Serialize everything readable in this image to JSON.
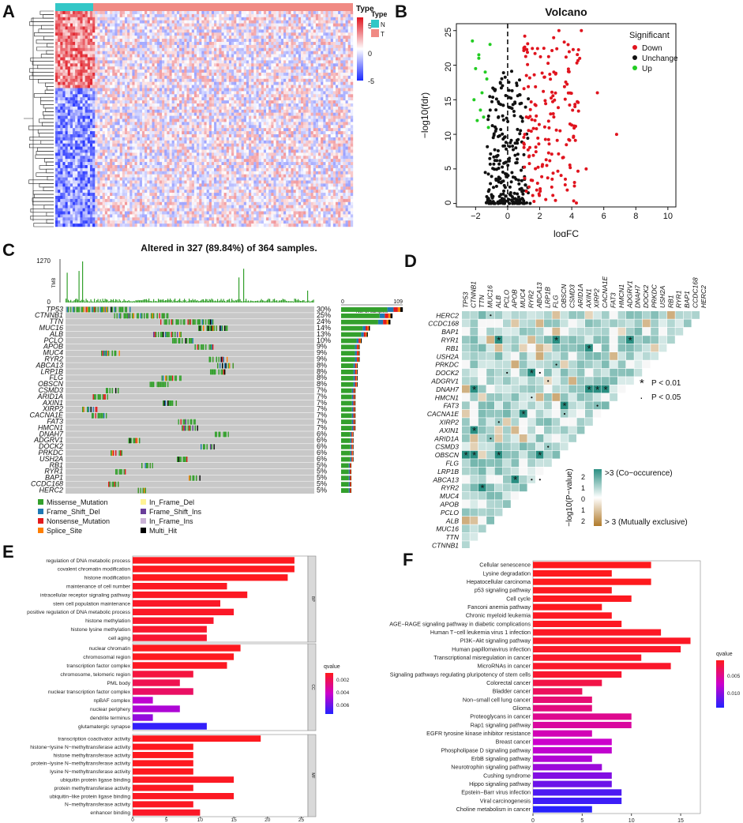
{
  "panels": {
    "a": "A",
    "b": "B",
    "c": "C",
    "d": "D",
    "e": "E",
    "f": "F"
  },
  "heatmap": {
    "legend_title": "Type",
    "type_legend": [
      {
        "label": "N",
        "color": "#33c7c7"
      },
      {
        "label": "T",
        "color": "#f08a84"
      }
    ],
    "color_ticks": [
      "5",
      "0",
      "-5"
    ],
    "colors": {
      "high": "#e0141e",
      "mid": "#ffffff",
      "low": "#1a29ff"
    }
  },
  "volcano": {
    "title": "Volcano",
    "xlabel": "logFC",
    "ylabel": "−log10(fdr)",
    "xticks": [
      "−2",
      "0",
      "2",
      "4",
      "6",
      "8",
      "10"
    ],
    "yticks": [
      "0",
      "5",
      "10",
      "15",
      "20",
      "25"
    ],
    "legend_title": "Significant",
    "legend": [
      {
        "label": "Down",
        "color": "#e0141e"
      },
      {
        "label": "Unchange",
        "color": "#111111"
      },
      {
        "label": "Up",
        "color": "#22cc22"
      }
    ],
    "colors": {
      "down": "#e0141e",
      "unchange": "#111111",
      "up": "#22cc22"
    }
  },
  "oncoplot": {
    "title": "Altered in 327 (89.84%) of 364 samples.",
    "tmb_label": "TMB",
    "tmb_max": "1270",
    "tmb_min": "0",
    "bar_axis_min": "0",
    "bar_axis_max": "109",
    "bar_axis_label": "No. of samples",
    "genes": [
      "TP53",
      "CTNNB1",
      "TTN",
      "MUC16",
      "ALB",
      "PCLO",
      "APOB",
      "MUC4",
      "RYR2",
      "ABCA13",
      "LRP1B",
      "FLG",
      "OBSCN",
      "CSMD3",
      "ARID1A",
      "AXIN1",
      "XIRP2",
      "CACNA1E",
      "FAT3",
      "HMCN1",
      "DNAH7",
      "ADGRV1",
      "DOCK2",
      "PRKDC",
      "USH2A",
      "RB1",
      "RYR1",
      "BAP1",
      "CCDC168",
      "HERC2"
    ],
    "percents": [
      "30%",
      "25%",
      "24%",
      "14%",
      "13%",
      "10%",
      "9%",
      "9%",
      "9%",
      "8%",
      "8%",
      "8%",
      "8%",
      "7%",
      "7%",
      "7%",
      "7%",
      "7%",
      "7%",
      "7%",
      "6%",
      "6%",
      "6%",
      "6%",
      "6%",
      "5%",
      "5%",
      "5%",
      "5%",
      "5%"
    ],
    "legend": [
      {
        "label": "Missense_Mutation",
        "color": "#33a02c"
      },
      {
        "label": "In_Frame_Del",
        "color": "#fff394"
      },
      {
        "label": "Frame_Shift_Del",
        "color": "#1f78b4"
      },
      {
        "label": "Frame_Shift_Ins",
        "color": "#6a3d9a"
      },
      {
        "label": "Nonsense_Mutation",
        "color": "#e31a1c"
      },
      {
        "label": "In_Frame_Ins",
        "color": "#cab2d6"
      },
      {
        "label": "Splice_Site",
        "color": "#ff7f00"
      },
      {
        "label": "Multi_Hit",
        "color": "#000000"
      }
    ]
  },
  "cooccur": {
    "genes": [
      "HERC2",
      "CCDC168",
      "BAP1",
      "RYR1",
      "RB1",
      "USH2A",
      "PRKDC",
      "DOCK2",
      "ADGRV1",
      "DNAH7",
      "HMCN1",
      "FAT3",
      "CACNA1E",
      "XIRP2",
      "AXIN1",
      "ARID1A",
      "CSMD3",
      "OBSCN",
      "FLG",
      "LRP1B",
      "ABCA13",
      "RYR2",
      "MUC4",
      "APOB",
      "PCLO",
      "ALB",
      "MUC16",
      "TTN",
      "CTNNB1",
      "TP53"
    ],
    "top_genes": [
      "TP53",
      "CTNNB1",
      "TTN",
      "MUC16",
      "ALB",
      "PCLO",
      "APOB",
      "MUC4",
      "RYR2",
      "ABCA13",
      "LRP1B",
      "FLG",
      "OBSCN",
      "CSMD3",
      "ARID1A",
      "AXIN1",
      "XIRP2",
      "CACNA1E",
      "FAT3",
      "HMCN1",
      "ADGRV1",
      "DNAH7",
      "DOCK2",
      "PRKDC",
      "USH2A",
      "RB1",
      "RYR1",
      "BAP1",
      "CCDC168",
      "HERC2"
    ],
    "sig_legend": [
      {
        "symbol": "★",
        "label": "P < 0.01"
      },
      {
        "symbol": "·",
        "label": "P < 0.05"
      }
    ],
    "color_title": "−log10(P−value)",
    "color_top_label": ">3 (Co−occurence)",
    "color_bottom_label": "> 3 (Mutually exclusive)",
    "color_ticks": [
      "2",
      "1",
      "0",
      "1",
      "2"
    ],
    "colors": {
      "co": "#2a8f82",
      "ex": "#b07a2a"
    }
  },
  "go_enrichment": {
    "xticks": [
      "0",
      "5",
      "10",
      "15",
      "20",
      "25"
    ],
    "legend_title": "qvalue",
    "legend_ticks": [
      "0.002",
      "0.004",
      "0.006"
    ],
    "groups": [
      {
        "strip": "BP",
        "items": [
          {
            "term": "regulation of DNA metabolic process",
            "count": 24,
            "q": 0.0001
          },
          {
            "term": "covalent chromatin modification",
            "count": 24,
            "q": 0.0001
          },
          {
            "term": "histone modification",
            "count": 23,
            "q": 0.0001
          },
          {
            "term": "maintenance of cell number",
            "count": 14,
            "q": 0.0002
          },
          {
            "term": "intracellular receptor signaling pathway",
            "count": 17,
            "q": 0.0002
          },
          {
            "term": "stem cell population maintenance",
            "count": 13,
            "q": 0.0003
          },
          {
            "term": "positive regulation of DNA metabolic process",
            "count": 15,
            "q": 0.0003
          },
          {
            "term": "histone methylation",
            "count": 12,
            "q": 0.0004
          },
          {
            "term": "histone lysine methylation",
            "count": 11,
            "q": 0.0004
          },
          {
            "term": "cell aging",
            "count": 11,
            "q": 0.0005
          }
        ]
      },
      {
        "strip": "CC",
        "items": [
          {
            "term": "nuclear chromatin",
            "count": 16,
            "q": 0.0001
          },
          {
            "term": "chromosomal region",
            "count": 15,
            "q": 0.0001
          },
          {
            "term": "transcription factor complex",
            "count": 14,
            "q": 0.0002
          },
          {
            "term": "chromosome, telomeric region",
            "count": 9,
            "q": 0.0008
          },
          {
            "term": "PML body",
            "count": 7,
            "q": 0.0012
          },
          {
            "term": "nuclear transcription factor complex",
            "count": 9,
            "q": 0.0016
          },
          {
            "term": "npBAF complex",
            "count": 3,
            "q": 0.0042
          },
          {
            "term": "nuclear periphery",
            "count": 7,
            "q": 0.0046
          },
          {
            "term": "dendrite terminus",
            "count": 3,
            "q": 0.0052
          },
          {
            "term": "glutamatergic synapse",
            "count": 11,
            "q": 0.0074
          }
        ]
      },
      {
        "strip": "MF",
        "items": [
          {
            "term": "transcription coactivator activity",
            "count": 19,
            "q": 0.0001
          },
          {
            "term": "histone−lysine N−methyltransferase activity",
            "count": 9,
            "q": 0.0001
          },
          {
            "term": "histone methyltransferase activity",
            "count": 9,
            "q": 0.0001
          },
          {
            "term": "protein−lysine N−methyltransferase activity",
            "count": 9,
            "q": 0.0001
          },
          {
            "term": "lysine N−methyltransferase activity",
            "count": 9,
            "q": 0.0001
          },
          {
            "term": "ubiquitin protein ligase binding",
            "count": 15,
            "q": 0.0002
          },
          {
            "term": "protein methyltransferase activity",
            "count": 9,
            "q": 0.0002
          },
          {
            "term": "ubiquitin−like protein ligase binding",
            "count": 15,
            "q": 0.0002
          },
          {
            "term": "N−methyltransferase activity",
            "count": 9,
            "q": 0.0002
          },
          {
            "term": "enhancer binding",
            "count": 10,
            "q": 0.0003
          }
        ]
      }
    ]
  },
  "kegg": {
    "xticks": [
      "0",
      "5",
      "10",
      "15"
    ],
    "legend_title": "qvalue",
    "legend_ticks": [
      "0.005",
      "0.010"
    ],
    "items": [
      {
        "term": "Cellular senescence",
        "count": 12,
        "q": 0.0001
      },
      {
        "term": "Lysine degradation",
        "count": 8,
        "q": 0.0001
      },
      {
        "term": "Hepatocellular carcinoma",
        "count": 12,
        "q": 0.0001
      },
      {
        "term": "p53 signaling pathway",
        "count": 8,
        "q": 0.0002
      },
      {
        "term": "Cell cycle",
        "count": 10,
        "q": 0.0002
      },
      {
        "term": "Fanconi anemia pathway",
        "count": 7,
        "q": 0.0002
      },
      {
        "term": "Chronic myeloid leukemia",
        "count": 8,
        "q": 0.0003
      },
      {
        "term": "AGE−RAGE signaling pathway in diabetic complications",
        "count": 9,
        "q": 0.0003
      },
      {
        "term": "Human T−cell leukemia virus 1 infection",
        "count": 13,
        "q": 0.0004
      },
      {
        "term": "PI3K−Akt signaling pathway",
        "count": 16,
        "q": 0.0004
      },
      {
        "term": "Human papillomavirus infection",
        "count": 15,
        "q": 0.0005
      },
      {
        "term": "Transcriptional misregulation in cancer",
        "count": 11,
        "q": 0.0006
      },
      {
        "term": "MicroRNAs in cancer",
        "count": 14,
        "q": 0.0006
      },
      {
        "term": "Signaling pathways regulating pluripotency of stem cells",
        "count": 9,
        "q": 0.0008
      },
      {
        "term": "Colorectal cancer",
        "count": 7,
        "q": 0.0016
      },
      {
        "term": "Bladder cancer",
        "count": 5,
        "q": 0.0024
      },
      {
        "term": "Non−small cell lung cancer",
        "count": 6,
        "q": 0.0032
      },
      {
        "term": "Glioma",
        "count": 6,
        "q": 0.0036
      },
      {
        "term": "Proteoglycans in cancer",
        "count": 10,
        "q": 0.0042
      },
      {
        "term": "Rap1 signaling pathway",
        "count": 10,
        "q": 0.0048
      },
      {
        "term": "EGFR tyrosine kinase inhibitor resistance",
        "count": 6,
        "q": 0.0056
      },
      {
        "term": "Breast cancer",
        "count": 8,
        "q": 0.0064
      },
      {
        "term": "Phospholipase D signaling pathway",
        "count": 8,
        "q": 0.0068
      },
      {
        "term": "ErbB signaling pathway",
        "count": 6,
        "q": 0.0074
      },
      {
        "term": "Neurotrophin signaling pathway",
        "count": 7,
        "q": 0.0082
      },
      {
        "term": "Cushing syndrome",
        "count": 8,
        "q": 0.0092
      },
      {
        "term": "Hippo signaling pathway",
        "count": 8,
        "q": 0.01
      },
      {
        "term": "Epstein−Barr virus infection",
        "count": 9,
        "q": 0.0112
      },
      {
        "term": "Viral carcinogenesis",
        "count": 9,
        "q": 0.0118
      },
      {
        "term": "Choline metabolism in cancer",
        "count": 6,
        "q": 0.0126
      }
    ]
  },
  "chart_data": [
    {
      "type": "heatmap",
      "title": "",
      "legend": [
        "N",
        "T"
      ],
      "color_range": [
        -5,
        5
      ]
    },
    {
      "type": "scatter",
      "title": "Volcano",
      "xlabel": "logFC",
      "ylabel": "−log10(fdr)",
      "xlim": [
        -3.2,
        10.5
      ],
      "ylim": [
        0,
        26
      ],
      "series": [
        "Down",
        "Unchange",
        "Up"
      ]
    },
    {
      "type": "bar",
      "title": "Altered in 327 (89.84%) of 364 samples.",
      "categories": [
        "TP53",
        "CTNNB1",
        "TTN",
        "MUC16",
        "ALB",
        "PCLO",
        "APOB",
        "MUC4",
        "RYR2",
        "ABCA13",
        "LRP1B",
        "FLG",
        "OBSCN",
        "CSMD3",
        "ARID1A",
        "AXIN1",
        "XIRP2",
        "CACNA1E",
        "FAT3",
        "HMCN1",
        "DNAH7",
        "ADGRV1",
        "DOCK2",
        "PRKDC",
        "USH2A",
        "RB1",
        "RYR1",
        "BAP1",
        "CCDC168",
        "HERC2"
      ],
      "values": [
        30,
        25,
        24,
        14,
        13,
        10,
        9,
        9,
        9,
        8,
        8,
        8,
        8,
        7,
        7,
        7,
        7,
        7,
        7,
        7,
        6,
        6,
        6,
        6,
        6,
        5,
        5,
        5,
        5,
        5
      ],
      "xlim": [
        0,
        109
      ]
    },
    {
      "type": "heatmap",
      "title": "",
      "xlabel": "",
      "ylabel": "−log10(P−value)"
    },
    {
      "type": "bar",
      "title": "",
      "xlim": [
        0,
        26
      ]
    },
    {
      "type": "bar",
      "title": "",
      "xlim": [
        0,
        17
      ]
    }
  ]
}
